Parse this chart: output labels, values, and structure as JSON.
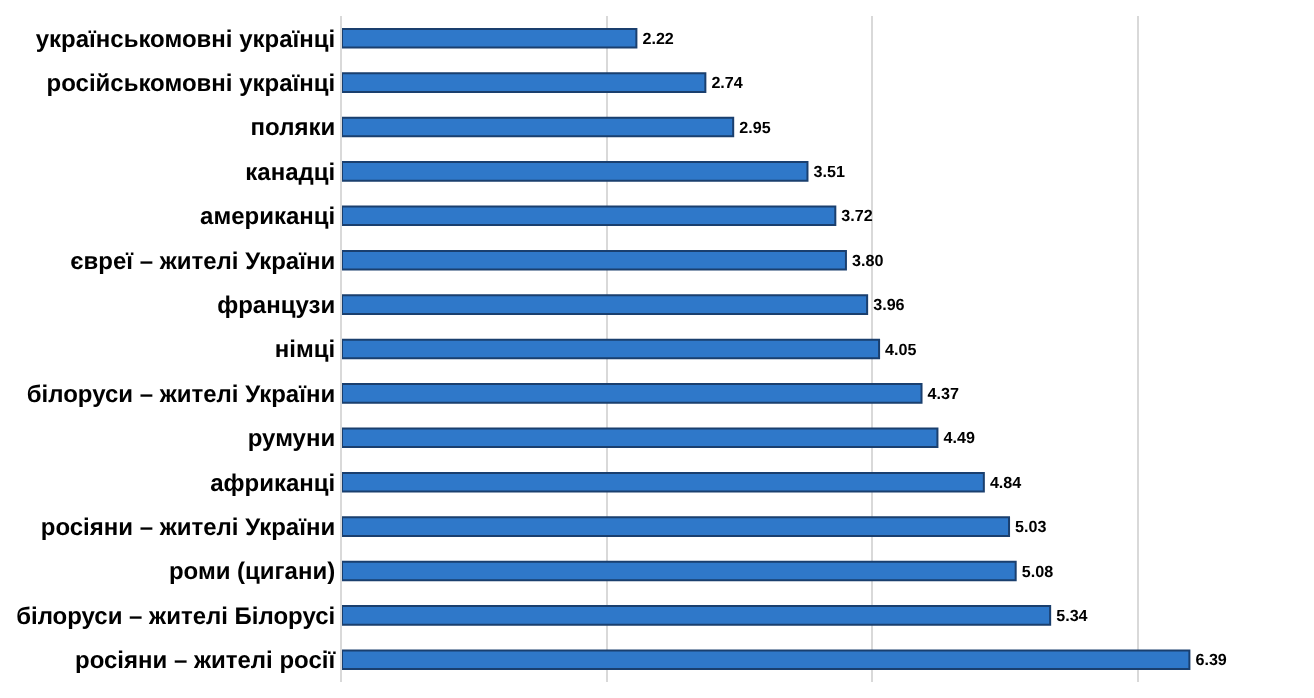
{
  "chart_data": {
    "type": "bar",
    "orientation": "horizontal",
    "categories": [
      "українськомовні українці",
      "російськомовні українці",
      "поляки",
      "канадці",
      "американці",
      "євреї – жителі України",
      "французи",
      "німці",
      "білоруси – жителі України",
      "румуни",
      "африканці",
      "росіяни – жителі України",
      "роми (цигани)",
      "білоруси – жителі Білорусі",
      "росіяни – жителі росії"
    ],
    "values": [
      2.22,
      2.74,
      2.95,
      3.51,
      3.72,
      3.8,
      3.96,
      4.05,
      4.37,
      4.49,
      4.84,
      5.03,
      5.08,
      5.34,
      6.39
    ],
    "value_labels": [
      "2.22",
      "2.74",
      "2.95",
      "3.51",
      "3.72",
      "3.80",
      "3.96",
      "4.05",
      "4.37",
      "4.49",
      "4.84",
      "5.03",
      "5.08",
      "5.34",
      "6.39"
    ],
    "color": "#2f78c9",
    "grid": "x",
    "tick_labels": "y",
    "legend": false
  }
}
